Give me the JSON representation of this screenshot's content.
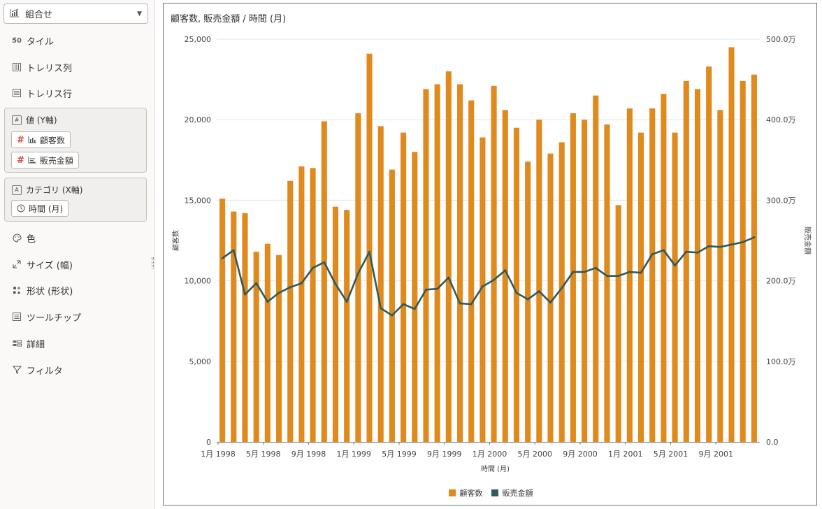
{
  "panel": {
    "chart_type": "組合せ",
    "rows": {
      "tile": "タイル",
      "trellis_col": "トレリス列",
      "trellis_row": "トレリス行",
      "color": "色",
      "size": "サイズ (幅)",
      "shape": "形状 (形状)",
      "tooltip": "ツールチップ",
      "detail": "詳細",
      "filter": "フィルタ"
    },
    "values_group": {
      "title": "値 (Y軸)",
      "items": [
        "顧客数",
        "販売金額"
      ]
    },
    "category_group": {
      "title": "カテゴリ (X軸)",
      "items": [
        "時間 (月)"
      ]
    }
  },
  "colors": {
    "bar": "#e08a1e",
    "line": "#2d5b5e",
    "grid": "#e5e5e5",
    "axis": "#7a7a7a"
  },
  "chart_data": {
    "type": "bar+line",
    "title": "顧客数, 販売金額 / 時間 (月)",
    "xlabel": "時間 (月)",
    "ylabel": "顧客数",
    "y2label": "販売金額",
    "ylim": [
      0,
      25000
    ],
    "y2lim": [
      0,
      5000000
    ],
    "yticks": [
      "0",
      "5,000",
      "10,000",
      "15,000",
      "20,000",
      "25,000"
    ],
    "y2ticks": [
      "0.0",
      "100.0万",
      "200.0万",
      "300.0万",
      "400.0万",
      "500.0万"
    ],
    "xtick_labels": [
      {
        "i": 0,
        "label": "1月 1998"
      },
      {
        "i": 4,
        "label": "5月 1998"
      },
      {
        "i": 8,
        "label": "9月 1998"
      },
      {
        "i": 12,
        "label": "1月 1999"
      },
      {
        "i": 16,
        "label": "5月 1999"
      },
      {
        "i": 20,
        "label": "9月 1999"
      },
      {
        "i": 24,
        "label": "1月 2000"
      },
      {
        "i": 28,
        "label": "5月 2000"
      },
      {
        "i": 32,
        "label": "9月 2000"
      },
      {
        "i": 36,
        "label": "1月 2001"
      },
      {
        "i": 40,
        "label": "5月 2001"
      },
      {
        "i": 44,
        "label": "9月 2001"
      }
    ],
    "grid": true,
    "legend": "bottom-center",
    "series": [
      {
        "name": "顧客数",
        "type": "bar",
        "axis": "y",
        "values": [
          15100,
          14300,
          14200,
          11800,
          12300,
          11600,
          16200,
          17100,
          17000,
          19900,
          14600,
          14400,
          20400,
          24100,
          19600,
          16900,
          19200,
          18000,
          21900,
          22200,
          23000,
          22200,
          21200,
          18900,
          22100,
          20600,
          19500,
          17400,
          20000,
          17900,
          18600,
          20400,
          20000,
          21500,
          19700,
          14700,
          20700,
          19200,
          20700,
          21600,
          19200,
          22400,
          21900,
          23300,
          20600,
          24500,
          22400,
          22800
        ]
      },
      {
        "name": "販売金額",
        "type": "line",
        "axis": "y2",
        "values": [
          2280000,
          2380000,
          1830000,
          1970000,
          1740000,
          1850000,
          1920000,
          1970000,
          2160000,
          2230000,
          1960000,
          1740000,
          2090000,
          2360000,
          1660000,
          1570000,
          1710000,
          1650000,
          1890000,
          1900000,
          2040000,
          1720000,
          1710000,
          1930000,
          2010000,
          2130000,
          1850000,
          1770000,
          1870000,
          1730000,
          1910000,
          2110000,
          2110000,
          2160000,
          2060000,
          2060000,
          2110000,
          2100000,
          2330000,
          2380000,
          2190000,
          2360000,
          2350000,
          2430000,
          2420000,
          2450000,
          2480000,
          2540000
        ]
      }
    ]
  }
}
